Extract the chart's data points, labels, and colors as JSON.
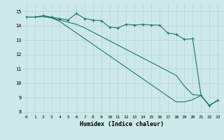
{
  "title": "",
  "xlabel": "Humidex (Indice chaleur)",
  "ylabel": "",
  "bg_color": "#cce8e8",
  "grid_color": "#b8d4d4",
  "line_color": "#1a7a6a",
  "xlim": [
    -0.5,
    23.5
  ],
  "ylim": [
    7.8,
    15.5
  ],
  "xticks": [
    0,
    1,
    2,
    3,
    4,
    5,
    6,
    7,
    8,
    9,
    10,
    11,
    12,
    13,
    14,
    15,
    16,
    17,
    18,
    19,
    20,
    21,
    22,
    23
  ],
  "yticks": [
    8,
    9,
    10,
    11,
    12,
    13,
    14,
    15
  ],
  "line1_x": [
    0,
    1,
    2,
    3,
    4,
    5,
    6,
    7,
    8,
    9,
    10,
    11,
    12,
    13,
    14,
    15,
    16,
    17,
    18,
    19,
    20,
    21,
    22,
    23
  ],
  "line1_y": [
    14.6,
    14.6,
    14.7,
    14.6,
    14.5,
    14.4,
    14.85,
    14.5,
    14.4,
    14.35,
    13.9,
    13.85,
    14.1,
    14.05,
    14.1,
    14.05,
    14.05,
    13.5,
    13.4,
    13.05,
    13.1,
    9.15,
    8.45,
    8.8
  ],
  "line2_x": [
    0,
    1,
    2,
    3,
    4,
    5,
    6,
    7,
    8,
    9,
    10,
    11,
    12,
    13,
    14,
    15,
    16,
    17,
    18,
    19,
    20,
    21,
    22,
    23
  ],
  "line2_y": [
    14.6,
    14.6,
    14.65,
    14.55,
    14.4,
    14.25,
    14.1,
    13.85,
    13.55,
    13.25,
    12.95,
    12.65,
    12.35,
    12.05,
    11.75,
    11.45,
    11.15,
    10.85,
    10.55,
    9.8,
    9.2,
    9.15,
    8.45,
    8.8
  ],
  "line3_x": [
    0,
    1,
    2,
    3,
    4,
    5,
    6,
    7,
    8,
    9,
    10,
    11,
    12,
    13,
    14,
    15,
    16,
    17,
    18,
    19,
    20,
    21,
    22,
    23
  ],
  "line3_y": [
    14.6,
    14.6,
    14.65,
    14.55,
    14.3,
    13.9,
    13.5,
    13.1,
    12.7,
    12.3,
    11.9,
    11.5,
    11.1,
    10.7,
    10.3,
    9.9,
    9.5,
    9.1,
    8.7,
    8.7,
    8.85,
    9.15,
    8.45,
    8.8
  ]
}
